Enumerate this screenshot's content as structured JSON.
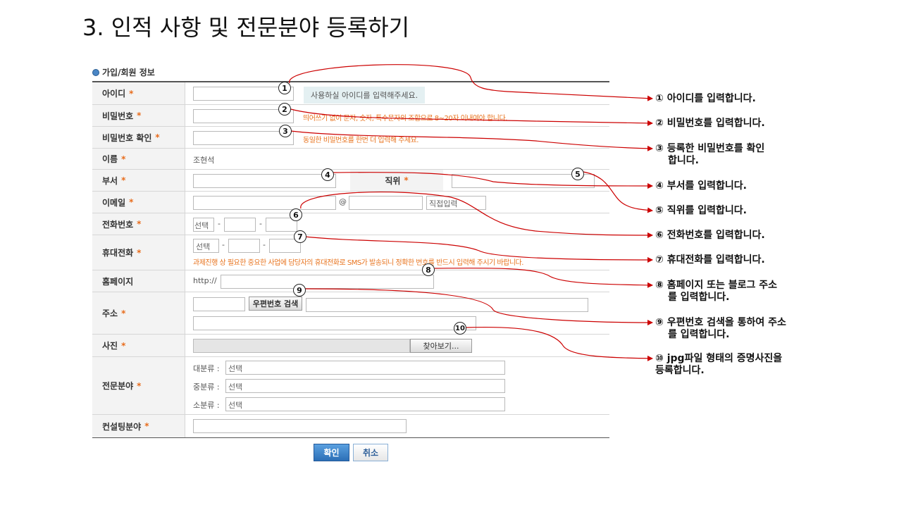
{
  "slide_title": "3. 인적 사항 및 전문분야 등록하기",
  "section_title": "가입/회원 정보",
  "required_mark": "*",
  "rows": {
    "id": {
      "label": "아이디",
      "hint": "사용하실 아이디를 입력해주세요."
    },
    "password": {
      "label": "비밀번호",
      "hint": "띄어쓰기 없이 문자, 숫자, 특수문자의 조합으로 8~20자 이내여야 합니다."
    },
    "password_confirm": {
      "label": "비밀번호 확인",
      "hint": "동일한 비밀번호를 한번 더 입력해 주세요."
    },
    "name": {
      "label": "이름",
      "value": "조현석"
    },
    "department": {
      "label": "부서",
      "position_label": "직위"
    },
    "email": {
      "label": "이메일",
      "at": "@",
      "direct_input": "직접입력"
    },
    "phone": {
      "label": "전화번호",
      "select": "선택",
      "dash": "-"
    },
    "mobile": {
      "label": "휴대전화",
      "select": "선택",
      "dash": "-",
      "notice": "과제진행 상 필요한 중요한 사업에 담당자의 휴대전화로 SMS가 발송되니 정확한 번호를 반드시 입력해 주시기 바랍니다."
    },
    "homepage": {
      "label": "홈페이지",
      "prefix": "http://"
    },
    "address": {
      "label": "주소",
      "zip_button": "우편번호 검색"
    },
    "photo": {
      "label": "사진",
      "browse_button": "찾아보기..."
    },
    "expertise": {
      "label": "전문분야",
      "major": "대분류 :",
      "middle": "중분류 :",
      "minor": "소분류 :",
      "select": "선택"
    },
    "consulting": {
      "label": "컨설팅분야"
    }
  },
  "buttons": {
    "confirm": "확인",
    "cancel": "취소"
  },
  "markers": [
    "1",
    "2",
    "3",
    "4",
    "5",
    "6",
    "7",
    "8",
    "9",
    "10"
  ],
  "annotations": {
    "a1": "① 아이디를 입력합니다.",
    "a2": "② 비밀번호를 입력합니다.",
    "a3_1": "③ 등록한 비밀번호를 확인",
    "a3_2": "합니다.",
    "a4": "④ 부서를 입력합니다.",
    "a5": "⑤ 직위를 입력합니다.",
    "a6": "⑥ 전화번호를 입력합니다.",
    "a7": "⑦ 휴대전화를 입력합니다.",
    "a8_1": "⑧ 홈페이지 또는 블로그 주소",
    "a8_2": "를 입력합니다.",
    "a9_1": "⑨ 우편번호 검색을 통하여 주소",
    "a9_2": "를 입력합니다.",
    "a10_1": "⑩ jpg파일 형태의 증명사진을",
    "a10_2": "등록합니다."
  },
  "colors": {
    "arrow": "#cc0000",
    "required": "#e86c1c",
    "hint": "#e8741f",
    "primary_button": "#2c6fb6"
  }
}
